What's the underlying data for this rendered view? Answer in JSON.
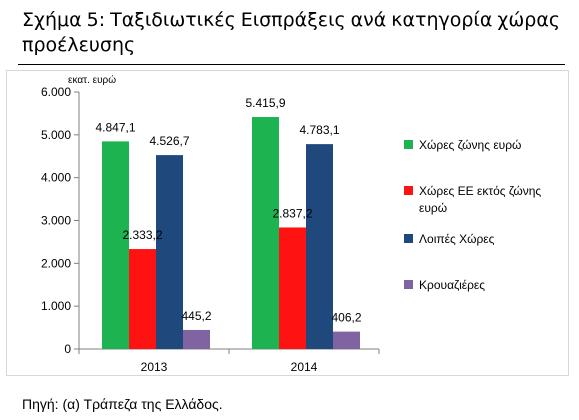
{
  "caption": {
    "words": [
      "Σχήμα",
      "5:",
      "Ταξιδιωτικές",
      "Εισπράξεις",
      "ανά",
      "κατηγορία",
      "χώρας"
    ],
    "line2": "προέλευσης"
  },
  "source": "Πηγή: (α) Τράπεζα της Ελλάδος.",
  "chart_data": {
    "type": "bar",
    "title": "Ταξιδιωτικές Εισπράξεις ανά κατηγορία χώρας προέλευσης",
    "ylabel": "εκατ. ευρώ",
    "xlabel": "",
    "categories": [
      "2013",
      "2014"
    ],
    "ylim": [
      0,
      6000
    ],
    "yticks": [
      0,
      1000,
      2000,
      3000,
      4000,
      5000,
      6000
    ],
    "ytick_labels": [
      "0",
      "1.000",
      "2.000",
      "3.000",
      "4.000",
      "5.000",
      "6.000"
    ],
    "grid": false,
    "legend_position": "right",
    "series": [
      {
        "name": "Χώρες ζώνης ευρώ",
        "color": "#1db350",
        "values": [
          4847.1,
          5415.9
        ],
        "labels": [
          "4.847,1",
          "5.415,9"
        ]
      },
      {
        "name": "Χώρες ΕΕ εκτός ζώνης ευρώ",
        "color": "#ff1212",
        "values": [
          2333.2,
          2837.2
        ],
        "labels": [
          "2.333,2",
          "2.837,2"
        ]
      },
      {
        "name": "Λοιπές Χώρες",
        "color": "#1f497d",
        "values": [
          4526.7,
          4783.1
        ],
        "labels": [
          "4.526,7",
          "4.783,1"
        ]
      },
      {
        "name": "Κρουαζιέρες",
        "color": "#8064a2",
        "values": [
          445.2,
          406.2
        ],
        "labels": [
          "445,2",
          "406,2"
        ]
      }
    ]
  }
}
